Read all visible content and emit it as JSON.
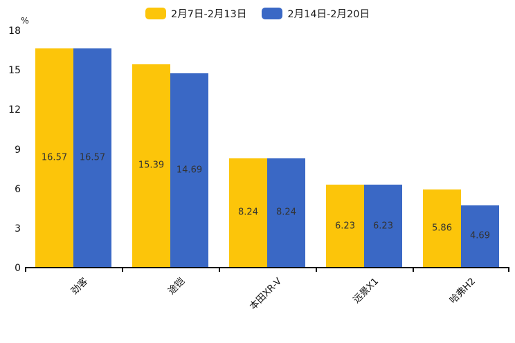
{
  "chart_data": {
    "type": "bar",
    "categories": [
      "劲客",
      "途铠",
      "本田XR-V",
      "远景X1",
      "哈弗H2"
    ],
    "series": [
      {
        "name": "2月7日-2月13日",
        "color": "#FCC50A",
        "values": [
          16.57,
          15.39,
          8.24,
          6.23,
          5.86
        ]
      },
      {
        "name": "2月14日-2月20日",
        "color": "#3A68C5",
        "values": [
          16.57,
          14.69,
          8.24,
          6.23,
          4.69
        ]
      }
    ],
    "title": "",
    "xlabel": "",
    "ylabel": "%",
    "ylim": [
      0,
      18
    ],
    "yticks": [
      0,
      3,
      6,
      9,
      12,
      15,
      18
    ],
    "grid": false,
    "legend_position": "top-center",
    "value_labels": "inside-center",
    "xtick_rotation": 45,
    "axis_color": "#000000",
    "value_label_color": "#333333",
    "tick_label_color": "#111111"
  }
}
